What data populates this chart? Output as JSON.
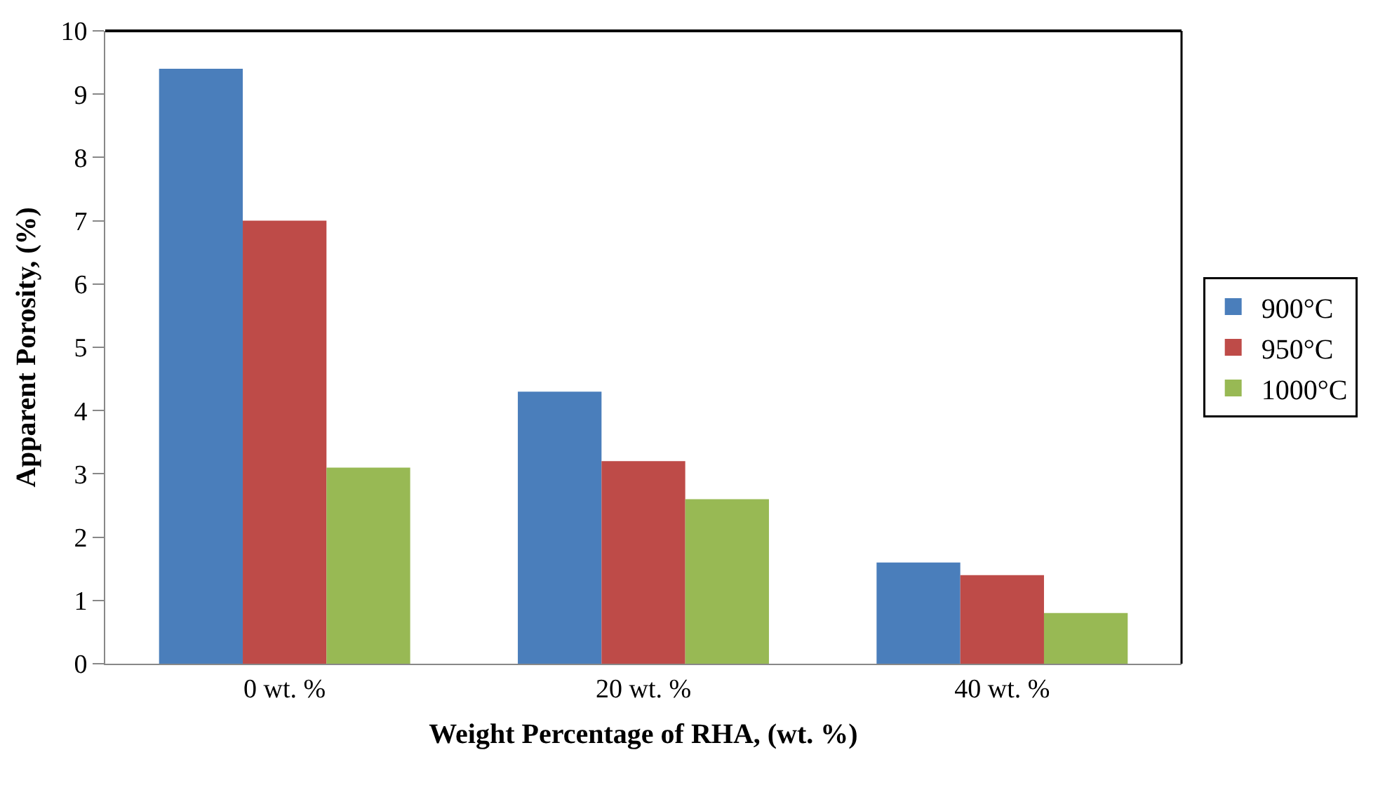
{
  "chart_data": {
    "type": "bar",
    "xlabel": "Weight Percentage of RHA, (wt. %)",
    "ylabel": "Apparent Porosity, (%)",
    "categories": [
      "0 wt. %",
      "20 wt. %",
      "40 wt. %"
    ],
    "series": [
      {
        "name": "900°C",
        "color": "#4a7ebb",
        "values": [
          9.4,
          4.3,
          1.6
        ]
      },
      {
        "name": "950°C",
        "color": "#be4b48",
        "values": [
          7.0,
          3.2,
          1.4
        ]
      },
      {
        "name": "1000°C",
        "color": "#98b954",
        "values": [
          3.1,
          2.6,
          0.8
        ]
      }
    ],
    "ylim": [
      0,
      10
    ],
    "yticks": [
      0,
      1,
      2,
      3,
      4,
      5,
      6,
      7,
      8,
      9,
      10
    ],
    "grid": false,
    "legend": "right"
  }
}
